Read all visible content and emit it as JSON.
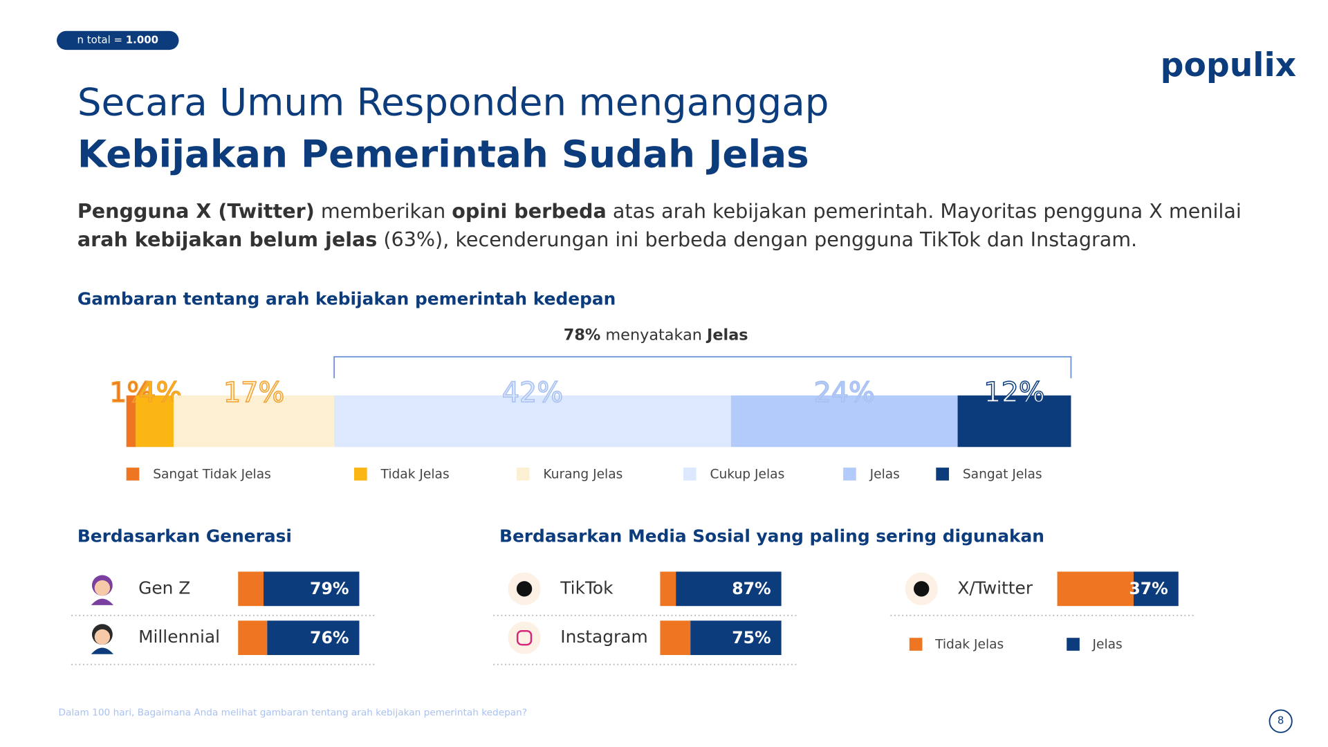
{
  "badge": [
    {
      "text": "n total = ",
      "bold": false
    },
    {
      "text": "1.000",
      "bold": true
    }
  ],
  "logo": "populix",
  "title": {
    "line1": "Secara Umum Responden menganggap",
    "line2": "Kebijakan Pemerintah Sudah Jelas"
  },
  "paragraph": [
    [
      {
        "text": "Pengguna X (Twitter)",
        "bold": true
      },
      {
        "text": " memberikan ",
        "bold": false
      },
      {
        "text": "opini berbeda",
        "bold": true
      },
      {
        "text": " atas arah kebijakan pemerintah. Mayoritas pengguna X menilai",
        "bold": false
      }
    ],
    [
      {
        "text": "arah kebijakan belum jelas",
        "bold": true
      },
      {
        "text": " (63%), kecenderungan ini berbeda dengan pengguna TikTok dan Instagram.",
        "bold": false
      }
    ]
  ],
  "chart_data": [
    {
      "type": "bar",
      "orientation": "horizontal",
      "stacked": true,
      "title": "Gambaran tentang arah kebijakan pemerintah kedepan",
      "annotation": [
        {
          "text": "78%",
          "bold": true
        },
        {
          "text": " menyatakan ",
          "bold": false
        },
        {
          "text": "Jelas",
          "bold": true
        }
      ],
      "series": [
        {
          "name": "Sangat Tidak Jelas",
          "color": "#ee7623",
          "values": [
            1
          ],
          "value_labels": [
            "1%"
          ]
        },
        {
          "name": "Tidak Jelas",
          "color": "#fbb614",
          "values": [
            4
          ],
          "value_labels": [
            "4%"
          ]
        },
        {
          "name": "Kurang Jelas",
          "color": "#fdefd1",
          "values": [
            17
          ],
          "value_labels": [
            "17%"
          ]
        },
        {
          "name": "Cukup Jelas",
          "color": "#dce8fd",
          "values": [
            42
          ],
          "value_labels": [
            "42%"
          ]
        },
        {
          "name": "Jelas",
          "color": "#b3cbfb",
          "values": [
            24
          ],
          "value_labels": [
            "24%"
          ]
        },
        {
          "name": "Sangat Jelas",
          "color": "#0c3c7c",
          "values": [
            12
          ],
          "value_labels": [
            "12%"
          ]
        }
      ]
    },
    {
      "type": "bar",
      "orientation": "horizontal",
      "stacked": true,
      "title": "Berdasarkan Generasi",
      "categories": [
        "Gen Z",
        "Millennial"
      ],
      "series": [
        {
          "name": "Tidak Jelas",
          "color": "#ee7623",
          "values": [
            21,
            24
          ]
        },
        {
          "name": "Jelas",
          "color": "#0c3c7c",
          "values": [
            79,
            76
          ],
          "value_labels": [
            "79%",
            "76%"
          ]
        }
      ]
    },
    {
      "type": "bar",
      "orientation": "horizontal",
      "stacked": true,
      "title": "Berdasarkan Media Sosial yang paling sering digunakan",
      "categories": [
        "TikTok",
        "Instagram",
        "X/Twitter"
      ],
      "series": [
        {
          "name": "Tidak Jelas",
          "color": "#ee7623",
          "values": [
            13,
            25,
            63
          ]
        },
        {
          "name": "Jelas",
          "color": "#0c3c7c",
          "values": [
            87,
            75,
            37
          ],
          "value_labels": [
            "87%",
            "75%",
            "37%"
          ]
        }
      ],
      "legend": true
    }
  ],
  "footnote": "Dalam 100 hari, Bagaimana Anda melihat gambaran tentang arah kebijakan pemerintah kedepan?",
  "page_number": "8"
}
